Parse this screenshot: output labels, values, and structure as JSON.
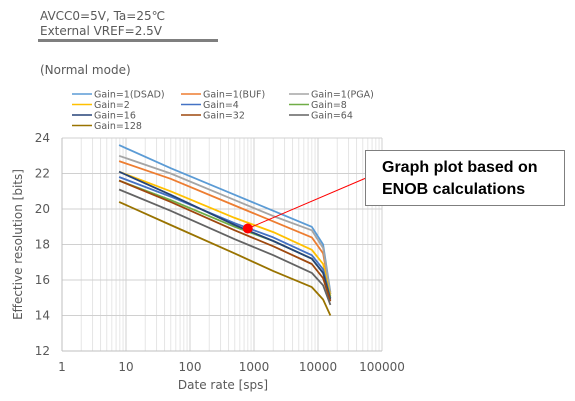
{
  "header": {
    "line1": "AVCC0=5V, Ta=25℃",
    "line2": "External VREF=2.5V",
    "mode": "(Normal mode)"
  },
  "callout": {
    "line1": "Graph plot based on",
    "line2": "ENOB calculations"
  },
  "chart_data": {
    "type": "line",
    "xscale": "log",
    "xlim": [
      1,
      100000
    ],
    "ylim": [
      12,
      24
    ],
    "xlabel": "Date rate [sps]",
    "ylabel": "Effective resolution [bits]",
    "xticks": [
      "1",
      "10",
      "100",
      "1000",
      "10000",
      "100000"
    ],
    "yticks": [
      "12",
      "14",
      "16",
      "18",
      "20",
      "22",
      "24"
    ],
    "grid": true,
    "legend_position": "top",
    "x": [
      7.8,
      50,
      500,
      2000,
      8000,
      12000,
      15600
    ],
    "series": [
      {
        "name": "Gain=1(DSAD)",
        "color": "#5b9bd5",
        "values": [
          23.6,
          22.3,
          20.8,
          19.9,
          19.0,
          18.0,
          15.3
        ]
      },
      {
        "name": "Gain=1(BUF)",
        "color": "#ed7d31",
        "values": [
          22.7,
          21.7,
          20.2,
          19.3,
          18.4,
          17.5,
          15.2
        ]
      },
      {
        "name": "Gain=1(PGA)",
        "color": "#a5a5a5",
        "values": [
          23.0,
          22.0,
          20.5,
          19.6,
          18.8,
          17.8,
          15.2
        ]
      },
      {
        "name": "Gain=2",
        "color": "#ffc000",
        "values": [
          22.1,
          21.0,
          19.5,
          18.7,
          17.7,
          16.9,
          15.1
        ]
      },
      {
        "name": "Gain=4",
        "color": "#4472c4",
        "values": [
          21.8,
          20.7,
          19.2,
          18.4,
          17.4,
          16.6,
          15.0
        ]
      },
      {
        "name": "Gain=8",
        "color": "#70ad47",
        "values": [
          21.6,
          20.5,
          19.0,
          18.2,
          17.2,
          16.4,
          15.0
        ]
      },
      {
        "name": "Gain=16",
        "color": "#264478",
        "values": [
          22.1,
          20.8,
          19.1,
          18.2,
          17.2,
          16.4,
          14.9
        ]
      },
      {
        "name": "Gain=32",
        "color": "#9e480e",
        "values": [
          21.6,
          20.4,
          18.8,
          17.9,
          16.9,
          16.1,
          14.8
        ]
      },
      {
        "name": "Gain=64",
        "color": "#636363",
        "values": [
          21.1,
          19.9,
          18.3,
          17.4,
          16.4,
          15.7,
          14.6
        ]
      },
      {
        "name": "Gain=128",
        "color": "#997300",
        "values": [
          20.4,
          19.1,
          17.5,
          16.5,
          15.6,
          14.9,
          14.0
        ]
      }
    ],
    "annotation": {
      "x": 800,
      "y": 18.9,
      "color": "#ff0000"
    }
  }
}
